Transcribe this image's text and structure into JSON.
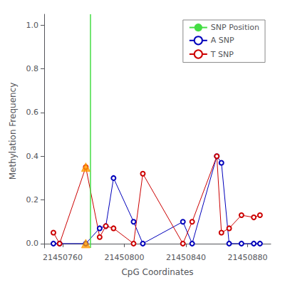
{
  "chart_data": {
    "type": "line",
    "xlabel": "CpG Coordinates",
    "ylabel": "Methylation Frequency",
    "xlim": [
      21450748,
      21450895
    ],
    "ylim": [
      -0.02,
      1.05
    ],
    "xticks": [
      21450760,
      21450800,
      21450840,
      21450880
    ],
    "yticks": [
      {
        "value": 0.0,
        "label": "0.0"
      },
      0.2,
      0.4,
      0.6,
      0.8,
      {
        "value": 1.0,
        "label": "1.0"
      }
    ],
    "grid": false,
    "legend": "upper right",
    "series": [
      {
        "name": "SNP Position",
        "type": "vline",
        "x": 21450778,
        "color": "#44dd44"
      },
      {
        "name": "A SNP",
        "type": "line",
        "marker": "open circle",
        "color": "#0000bb",
        "x": [
          21450754,
          21450758,
          21450775,
          21450784,
          21450788,
          21450793,
          21450806,
          21450812,
          21450838,
          21450844,
          21450860,
          21450863,
          21450868,
          21450876,
          21450884,
          21450888
        ],
        "values": [
          0.0,
          0.0,
          0.0,
          0.07,
          0.08,
          0.3,
          0.1,
          0.0,
          0.1,
          0.0,
          0.4,
          0.37,
          0.0,
          0.0,
          0.0,
          0.0
        ]
      },
      {
        "name": "T SNP",
        "type": "line",
        "marker": "open circle",
        "color": "#cc0000",
        "x": [
          21450754,
          21450758,
          21450775,
          21450784,
          21450788,
          21450793,
          21450806,
          21450812,
          21450838,
          21450844,
          21450860,
          21450863,
          21450868,
          21450876,
          21450884,
          21450888
        ],
        "values": [
          0.05,
          0.0,
          0.35,
          0.03,
          0.08,
          0.07,
          0.0,
          0.32,
          0.0,
          0.1,
          0.4,
          0.05,
          0.07,
          0.13,
          0.12,
          0.13
        ]
      },
      {
        "type": "scatter",
        "marker": "triangle",
        "color": "#ff9900",
        "x": [
          21450775
        ],
        "values": [
          0.35
        ]
      },
      {
        "type": "scatter",
        "marker": "triangle",
        "color": "#ff9900",
        "x": [
          21450775
        ],
        "values": [
          0.0
        ]
      }
    ]
  }
}
